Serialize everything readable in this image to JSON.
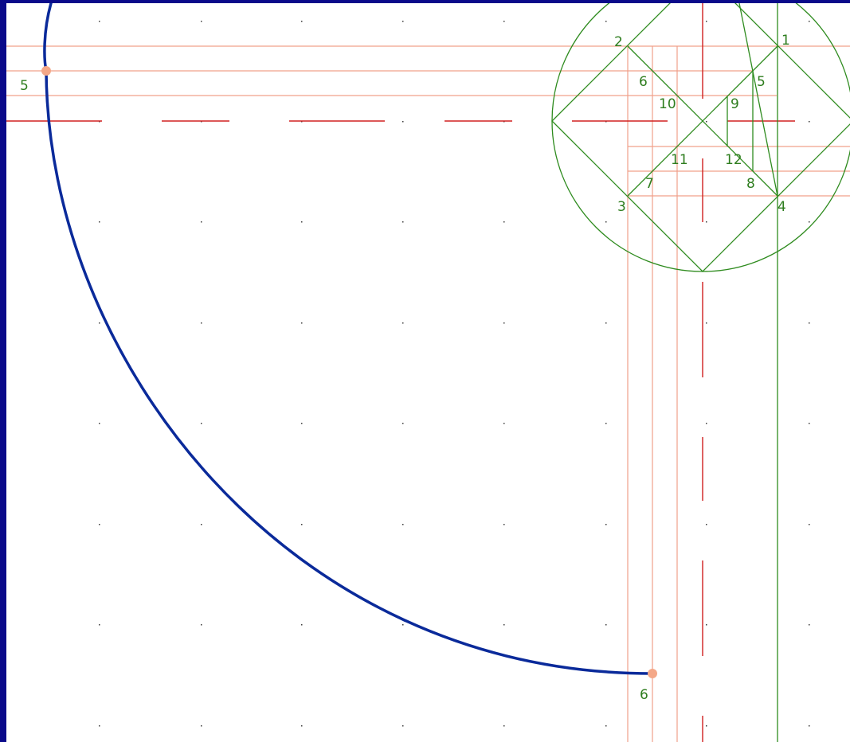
{
  "colors": {
    "frame": "#0a0a8a",
    "canvas": "#ffffff",
    "grid_dot": "#3a3a3a",
    "construction": "#f0a08a",
    "axis": "#d02020",
    "geometry": "#2e8b1e",
    "curve": "#0a2a9a",
    "point": "#f4a888",
    "label": "#2e7d1e"
  },
  "labels": {
    "p1": "1",
    "p2": "2",
    "p3": "3",
    "p4": "4",
    "p5": "5",
    "p6": "6",
    "p7": "7",
    "p8": "8",
    "p9": "9",
    "p10": "10",
    "p11": "11",
    "p12": "12",
    "p15": "5",
    "p16": "6",
    "curve_start": "5",
    "curve_end": "6"
  }
}
